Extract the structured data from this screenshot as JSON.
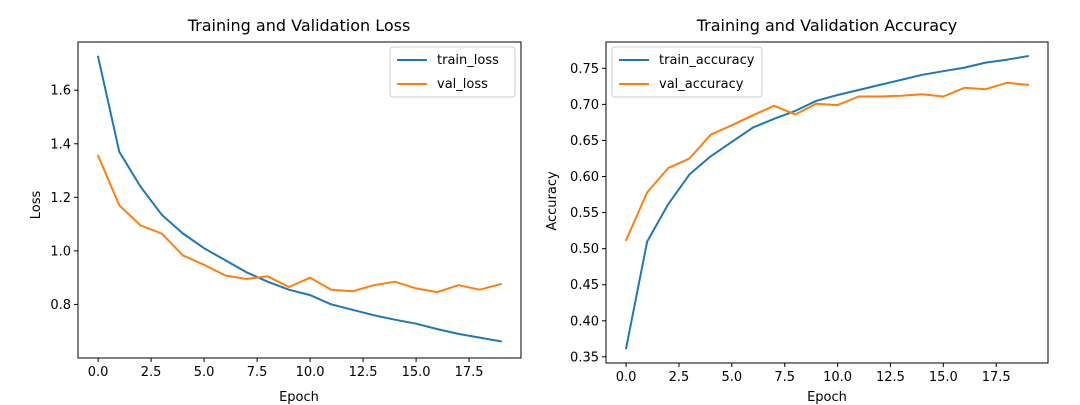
{
  "chart_data": [
    {
      "type": "line",
      "title": "Training and Validation Loss",
      "xlabel": "Epoch",
      "ylabel": "Loss",
      "xlim": [
        -0.95,
        19.95
      ],
      "ylim": [
        0.6,
        1.78
      ],
      "xticks": [
        0.0,
        2.5,
        5.0,
        7.5,
        10.0,
        12.5,
        15.0,
        17.5
      ],
      "xtick_labels": [
        "0.0",
        "2.5",
        "5.0",
        "7.5",
        "10.0",
        "12.5",
        "15.0",
        "17.5"
      ],
      "yticks": [
        0.8,
        1.0,
        1.2,
        1.4,
        1.6
      ],
      "ytick_labels": [
        "0.8",
        "1.0",
        "1.2",
        "1.4",
        "1.6"
      ],
      "legend_position": "top-right",
      "x": [
        0,
        1,
        2,
        3,
        4,
        5,
        6,
        7,
        8,
        9,
        10,
        11,
        12,
        13,
        14,
        15,
        16,
        17,
        18,
        19
      ],
      "series": [
        {
          "name": "train_loss",
          "color": "#1f77b4",
          "values": [
            1.725,
            1.37,
            1.24,
            1.135,
            1.065,
            1.01,
            0.965,
            0.92,
            0.885,
            0.855,
            0.835,
            0.8,
            0.78,
            0.76,
            0.743,
            0.728,
            0.708,
            0.69,
            0.676,
            0.662
          ]
        },
        {
          "name": "val_loss",
          "color": "#ff7f0e",
          "values": [
            1.355,
            1.17,
            1.095,
            1.065,
            0.983,
            0.948,
            0.908,
            0.895,
            0.905,
            0.865,
            0.9,
            0.855,
            0.849,
            0.872,
            0.885,
            0.86,
            0.846,
            0.872,
            0.855,
            0.876
          ]
        }
      ]
    },
    {
      "type": "line",
      "title": "Training and Validation Accuracy",
      "xlabel": "Epoch",
      "ylabel": "Accuracy",
      "xlim": [
        -0.95,
        19.95
      ],
      "ylim": [
        0.3415,
        0.7865
      ],
      "xticks": [
        0.0,
        2.5,
        5.0,
        7.5,
        10.0,
        12.5,
        15.0,
        17.5
      ],
      "xtick_labels": [
        "0.0",
        "2.5",
        "5.0",
        "7.5",
        "10.0",
        "12.5",
        "15.0",
        "17.5"
      ],
      "yticks": [
        0.35,
        0.4,
        0.45,
        0.5,
        0.55,
        0.6,
        0.65,
        0.7,
        0.75
      ],
      "ytick_labels": [
        "0.35",
        "0.40",
        "0.45",
        "0.50",
        "0.55",
        "0.60",
        "0.65",
        "0.70",
        "0.75"
      ],
      "legend_position": "top-left",
      "x": [
        0,
        1,
        2,
        3,
        4,
        5,
        6,
        7,
        8,
        9,
        10,
        11,
        12,
        13,
        14,
        15,
        16,
        17,
        18,
        19
      ],
      "series": [
        {
          "name": "train_accuracy",
          "color": "#1f77b4",
          "values": [
            0.362,
            0.51,
            0.562,
            0.603,
            0.628,
            0.648,
            0.668,
            0.68,
            0.691,
            0.705,
            0.713,
            0.72,
            0.727,
            0.734,
            0.741,
            0.746,
            0.751,
            0.758,
            0.762,
            0.767
          ]
        },
        {
          "name": "val_accuracy",
          "color": "#ff7f0e",
          "values": [
            0.512,
            0.578,
            0.612,
            0.625,
            0.658,
            0.671,
            0.685,
            0.698,
            0.686,
            0.701,
            0.699,
            0.711,
            0.711,
            0.712,
            0.714,
            0.711,
            0.723,
            0.721,
            0.73,
            0.727
          ]
        }
      ]
    }
  ]
}
